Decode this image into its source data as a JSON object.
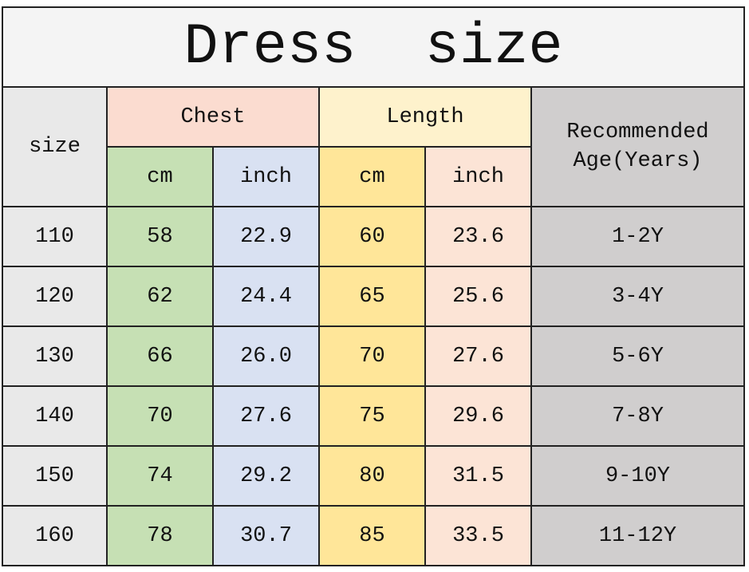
{
  "title": "Dress  size",
  "header": {
    "size": "size",
    "chest": "Chest",
    "length": "Length",
    "age": "Recommended Age(Years)",
    "units": [
      "cm",
      "inch",
      "cm",
      "inch"
    ]
  },
  "rows": [
    [
      "110",
      "58",
      "22.9",
      "60",
      "23.6",
      "1-2Y"
    ],
    [
      "120",
      "62",
      "24.4",
      "65",
      "25.6",
      "3-4Y"
    ],
    [
      "130",
      "66",
      "26.0",
      "70",
      "27.6",
      "5-6Y"
    ],
    [
      "140",
      "70",
      "27.6",
      "75",
      "29.6",
      "7-8Y"
    ],
    [
      "150",
      "74",
      "29.2",
      "80",
      "31.5",
      "9-10Y"
    ],
    [
      "160",
      "78",
      "30.7",
      "85",
      "33.5",
      "11-12Y"
    ]
  ]
}
